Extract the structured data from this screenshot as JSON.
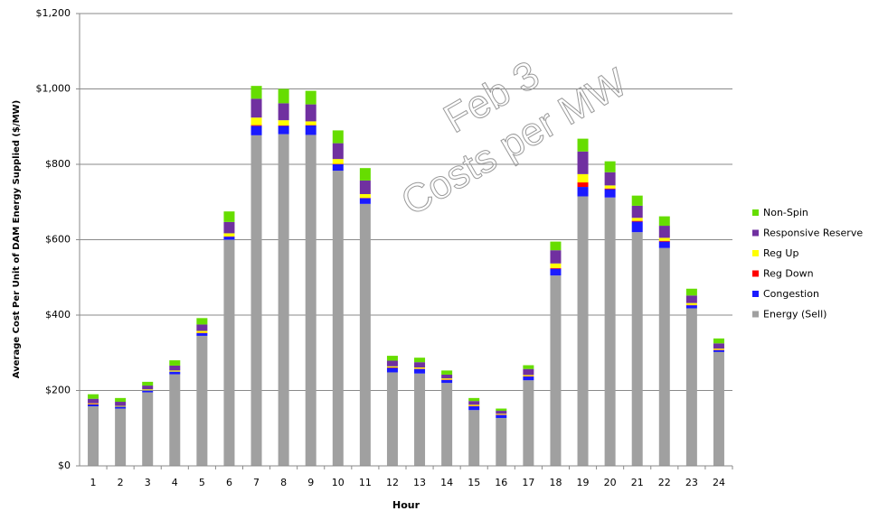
{
  "chart_data": {
    "type": "bar",
    "stacked": true,
    "x_label": "Hour",
    "y_label": "Average Cost Per Unit of DAM Energy Supplied ($/MW)",
    "annotations": [
      "Feb 3",
      "Costs per MW"
    ],
    "categories": [
      "1",
      "2",
      "3",
      "4",
      "5",
      "6",
      "7",
      "8",
      "9",
      "10",
      "11",
      "12",
      "13",
      "14",
      "15",
      "16",
      "17",
      "18",
      "19",
      "20",
      "21",
      "22",
      "23",
      "24"
    ],
    "series": [
      {
        "name": "Energy (Sell)",
        "color": "#a0a0a0",
        "values": [
          158,
          152,
          195,
          243,
          345,
          600,
          877,
          880,
          878,
          783,
          695,
          248,
          245,
          220,
          148,
          127,
          227,
          505,
          715,
          712,
          620,
          578,
          418,
          302
        ]
      },
      {
        "name": "Congestion",
        "color": "#1a1aff",
        "values": [
          5,
          5,
          5,
          7,
          7,
          8,
          25,
          22,
          25,
          17,
          15,
          12,
          12,
          8,
          10,
          8,
          10,
          18,
          25,
          22,
          28,
          17,
          8,
          5
        ]
      },
      {
        "name": "Reg Down",
        "color": "#ff0000",
        "values": [
          1,
          0,
          0,
          0,
          1,
          1,
          2,
          1,
          1,
          1,
          1,
          1,
          1,
          1,
          1,
          1,
          1,
          2,
          12,
          2,
          2,
          2,
          1,
          1
        ]
      },
      {
        "name": "Reg Up",
        "color": "#ffff00",
        "values": [
          2,
          2,
          3,
          3,
          5,
          8,
          20,
          14,
          10,
          13,
          10,
          3,
          3,
          3,
          3,
          2,
          3,
          12,
          22,
          8,
          8,
          8,
          5,
          3
        ]
      },
      {
        "name": "Responsive Reserve",
        "color": "#7030a0",
        "values": [
          12,
          11,
          10,
          13,
          17,
          30,
          50,
          45,
          45,
          42,
          36,
          15,
          14,
          10,
          10,
          8,
          16,
          35,
          60,
          35,
          32,
          32,
          20,
          14
        ]
      },
      {
        "name": "Non-Spin",
        "color": "#66dd00",
        "values": [
          12,
          10,
          10,
          14,
          17,
          28,
          34,
          38,
          36,
          34,
          33,
          13,
          12,
          11,
          8,
          6,
          10,
          23,
          34,
          29,
          27,
          25,
          18,
          13
        ]
      }
    ],
    "ylim": [
      0,
      1200
    ],
    "yticks": [
      {
        "value": 0,
        "label": "$0"
      },
      {
        "value": 200,
        "label": "$200"
      },
      {
        "value": 400,
        "label": "$400"
      },
      {
        "value": 600,
        "label": "$600"
      },
      {
        "value": 800,
        "label": "$800"
      },
      {
        "value": 1000,
        "label": "$1,000"
      },
      {
        "value": 1200,
        "label": "$1,200"
      }
    ],
    "grid": true,
    "legend": "right"
  }
}
